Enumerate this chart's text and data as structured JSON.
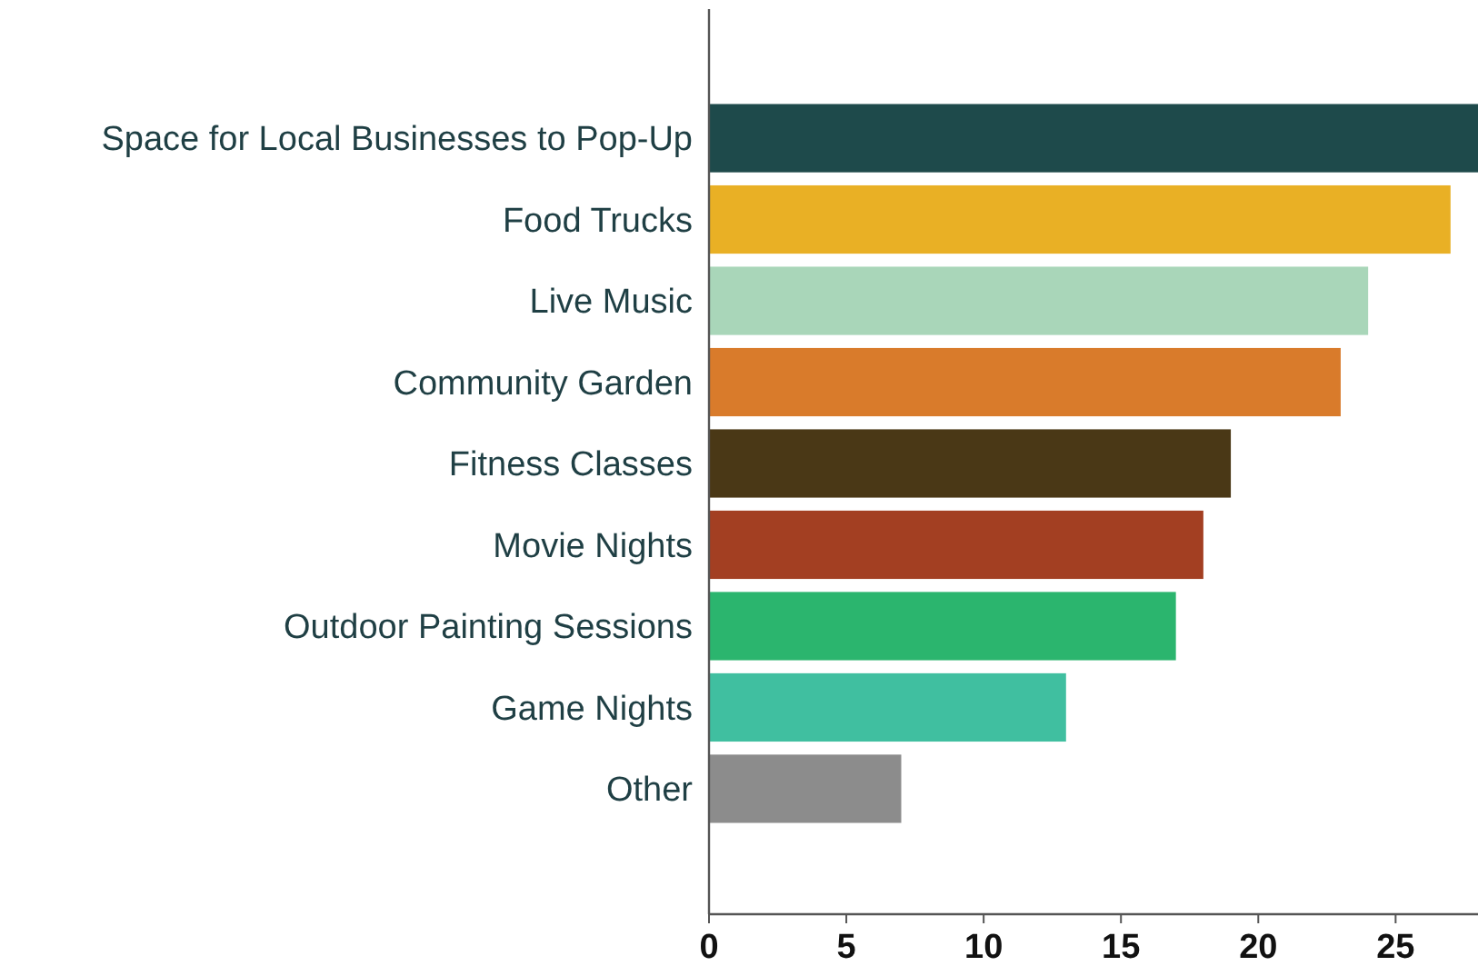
{
  "chart_data": {
    "type": "bar",
    "orientation": "horizontal",
    "categories": [
      "Space for Local Businesses to Pop-Up",
      "Food Trucks",
      "Live Music",
      "Community Garden",
      "Fitness Classes",
      "Movie Nights",
      "Outdoor Painting Sessions",
      "Game Nights",
      "Other"
    ],
    "values": [
      28,
      27,
      24,
      23,
      19,
      18,
      17,
      13,
      7
    ],
    "colors": [
      "#1e4a4b",
      "#e9b025",
      "#a9d6b9",
      "#d97b2b",
      "#4a3816",
      "#a33f22",
      "#2bb56e",
      "#40bfa0",
      "#8c8c8c"
    ],
    "xlim": [
      0,
      28
    ],
    "xticks": [
      0,
      5,
      10,
      15,
      20,
      25
    ],
    "grid": false
  }
}
